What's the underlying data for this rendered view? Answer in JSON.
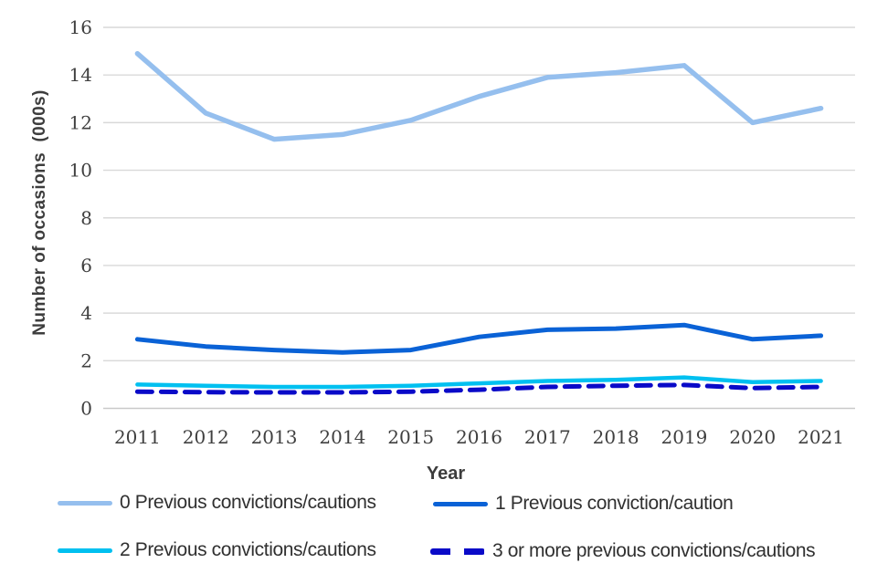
{
  "chart_data": {
    "type": "line",
    "title": "",
    "xlabel": "Year",
    "ylabel": "Number of occasions  (000s)",
    "x": [
      2011,
      2012,
      2013,
      2014,
      2015,
      2016,
      2017,
      2018,
      2019,
      2020,
      2021
    ],
    "ylim": [
      0,
      16
    ],
    "yticks": [
      0,
      2,
      4,
      6,
      8,
      10,
      12,
      14,
      16
    ],
    "grid": true,
    "legend_position": "bottom",
    "series": [
      {
        "name": "0 Previous convictions/cautions",
        "style": "solid",
        "color": "#95bfee",
        "values": [
          14.9,
          12.4,
          11.3,
          11.5,
          12.1,
          13.1,
          13.9,
          14.1,
          14.4,
          12.0,
          12.6
        ]
      },
      {
        "name": "1 Previous conviction/caution",
        "style": "solid",
        "color": "#0a62d6",
        "values": [
          2.9,
          2.6,
          2.45,
          2.35,
          2.45,
          3.0,
          3.3,
          3.35,
          3.5,
          2.9,
          3.05
        ]
      },
      {
        "name": "2 Previous convictions/cautions",
        "style": "solid",
        "color": "#00c0f0",
        "values": [
          1.0,
          0.95,
          0.9,
          0.9,
          0.95,
          1.05,
          1.15,
          1.2,
          1.3,
          1.1,
          1.15
        ]
      },
      {
        "name": "3 or more previous convictions/cautions",
        "style": "dashed",
        "color": "#0a0ac8",
        "values": [
          0.7,
          0.68,
          0.67,
          0.67,
          0.7,
          0.78,
          0.9,
          0.95,
          0.98,
          0.85,
          0.9
        ]
      }
    ]
  },
  "colors": {
    "grid": "#d9d9d9",
    "grid_zero": "#c9c9c9",
    "axis_text": "#404040",
    "legend_text": "#303030"
  }
}
